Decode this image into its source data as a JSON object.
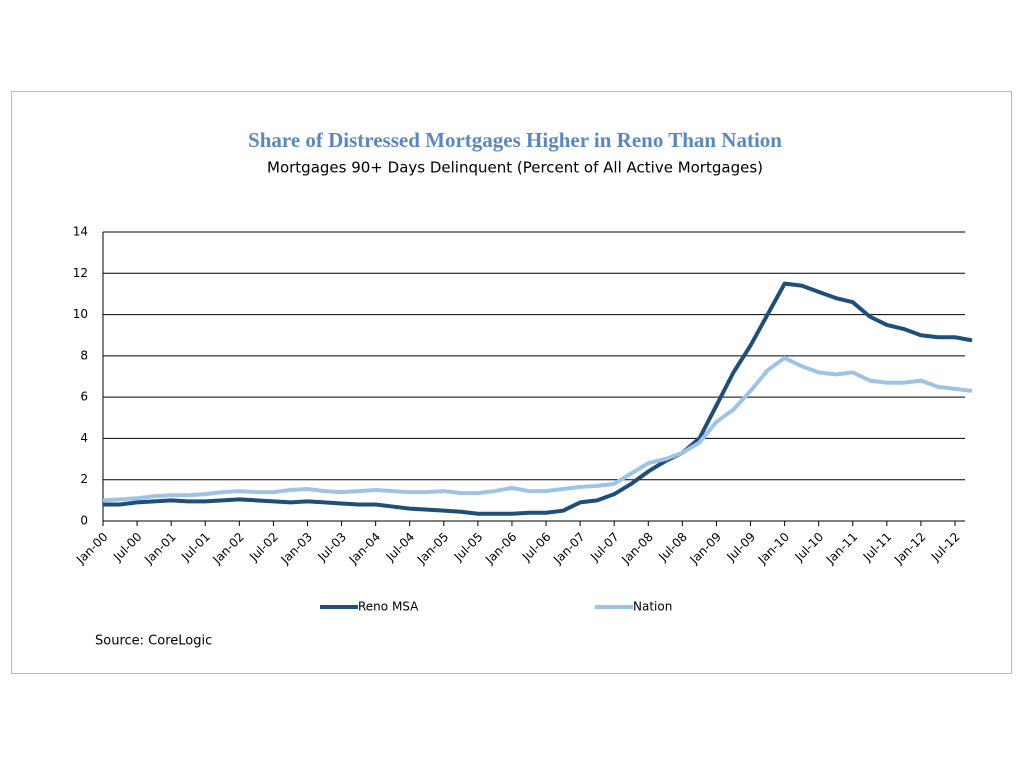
{
  "chart_data": {
    "type": "line",
    "title": "Share of Distressed Mortgages Higher in Reno Than Nation",
    "subtitle": "Mortgages 90+ Days Delinquent (Percent of All Active Mortgages)",
    "source": "Source: CoreLogic",
    "categories": [
      "Jan-00",
      null,
      "Jul-00",
      null,
      "Jan-01",
      null,
      "Jul-01",
      null,
      "Jan-02",
      null,
      "Jul-02",
      null,
      "Jan-03",
      null,
      "Jul-03",
      null,
      "Jan-04",
      null,
      "Jul-04",
      null,
      "Jan-05",
      null,
      "Jul-05",
      null,
      "Jan-06",
      null,
      "Jul-06",
      null,
      "Jan-07",
      null,
      "Jul-07",
      null,
      "Jan-08",
      null,
      "Jul-08",
      null,
      "Jan-09",
      null,
      "Jul-09",
      null,
      "Jan-10",
      null,
      "Jul-10",
      null,
      "Jan-11",
      null,
      "Jul-11",
      null,
      "Jan-12",
      null,
      "Jul-12",
      null
    ],
    "series": [
      {
        "name": "Reno MSA",
        "color": "#1f4e79",
        "values": [
          0.8,
          0.8,
          0.9,
          0.95,
          1.0,
          0.95,
          0.95,
          1.0,
          1.05,
          1.0,
          0.95,
          0.9,
          0.95,
          0.9,
          0.85,
          0.8,
          0.8,
          0.7,
          0.6,
          0.55,
          0.5,
          0.45,
          0.35,
          0.35,
          0.35,
          0.4,
          0.4,
          0.5,
          0.9,
          1.0,
          1.3,
          1.8,
          2.4,
          2.9,
          3.3,
          4.0,
          5.6,
          7.2,
          8.5,
          10.0,
          11.5,
          11.4,
          11.1,
          10.8,
          10.6,
          9.9,
          9.5,
          9.3,
          9.0,
          8.9,
          8.9,
          8.75
        ]
      },
      {
        "name": "Nation",
        "color": "#9dc3e6",
        "values": [
          1.0,
          1.05,
          1.1,
          1.2,
          1.25,
          1.25,
          1.3,
          1.4,
          1.45,
          1.4,
          1.4,
          1.5,
          1.55,
          1.45,
          1.4,
          1.45,
          1.5,
          1.45,
          1.4,
          1.4,
          1.45,
          1.35,
          1.35,
          1.45,
          1.6,
          1.45,
          1.45,
          1.55,
          1.65,
          1.7,
          1.8,
          2.3,
          2.8,
          3.0,
          3.3,
          3.8,
          4.8,
          5.4,
          6.3,
          7.3,
          7.9,
          7.5,
          7.2,
          7.1,
          7.2,
          6.8,
          6.7,
          6.7,
          6.8,
          6.5,
          6.4,
          6.3
        ]
      }
    ],
    "ylim": [
      0,
      14
    ],
    "yticks": [
      0,
      2,
      4,
      6,
      8,
      10,
      12,
      14
    ],
    "grid": true,
    "legend": "bottom"
  }
}
